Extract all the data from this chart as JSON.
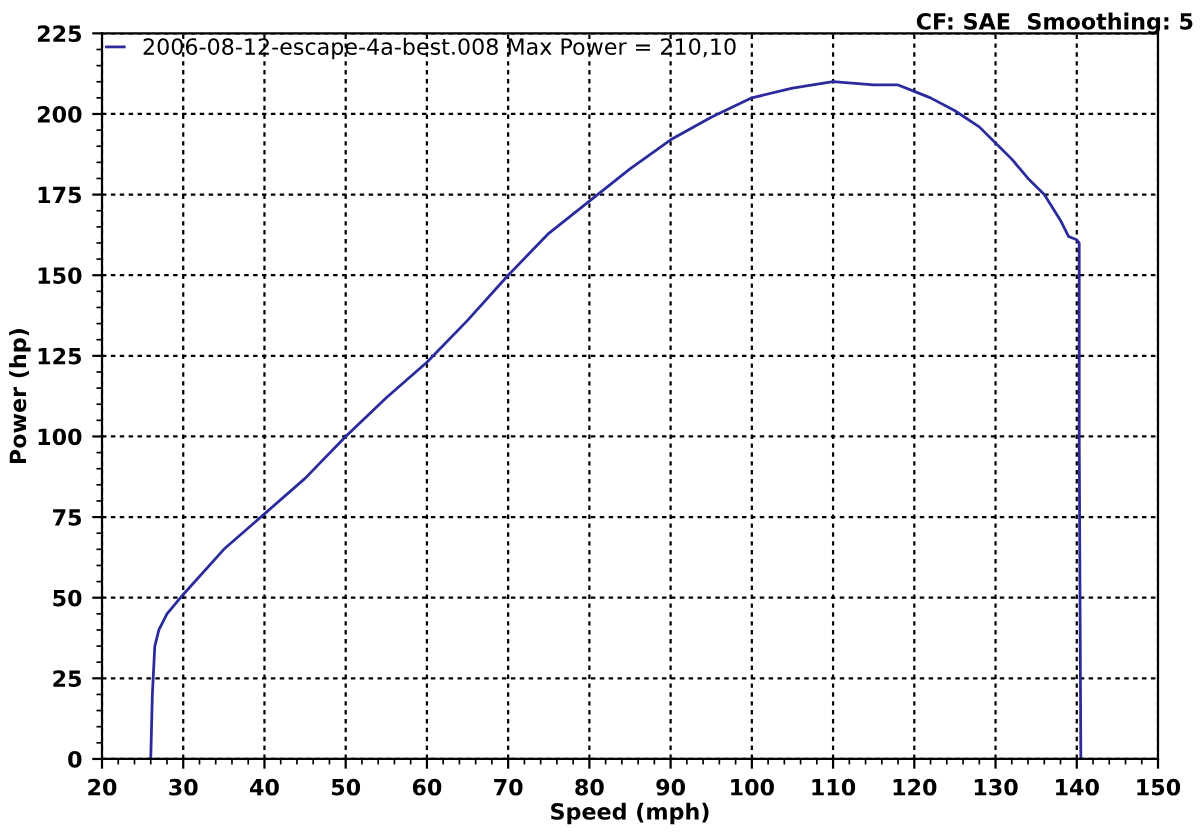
{
  "chart_data": {
    "type": "line",
    "xlabel": "Speed (mph)",
    "ylabel": "Power (hp)",
    "annotations": [
      "CF: SAE  Smoothing: 5"
    ],
    "series": [
      {
        "name": "2006-08-12-escape-4a-best.008 Max Power = 210,10",
        "color": "#2b2b9e",
        "x": [
          26,
          26.2,
          26.5,
          27,
          28,
          30,
          35,
          40,
          45,
          50,
          55,
          60,
          65,
          70,
          75,
          80,
          85,
          90,
          95,
          100,
          105,
          110,
          115,
          118,
          120,
          122,
          125,
          128,
          130,
          132,
          134,
          136,
          138,
          139,
          140,
          140.3,
          140.3,
          140.5
        ],
        "values": [
          0,
          20,
          35,
          40,
          45,
          51,
          65,
          76,
          87,
          100,
          112,
          123,
          136,
          150,
          163,
          173,
          183,
          192,
          199,
          205,
          208,
          210,
          209,
          209,
          207,
          205,
          201,
          196,
          191,
          186,
          180,
          175,
          167,
          162,
          161,
          160,
          100,
          0
        ]
      }
    ],
    "xlim": [
      20,
      150
    ],
    "xticks": [
      20,
      30,
      40,
      50,
      60,
      70,
      80,
      90,
      100,
      110,
      120,
      130,
      140,
      150
    ],
    "ylim": [
      0,
      225
    ],
    "yticks": [
      0,
      25,
      50,
      75,
      100,
      125,
      150,
      175,
      200,
      225
    ],
    "grid": true,
    "legend": "top left",
    "line_style": "solid",
    "marker": "none"
  }
}
